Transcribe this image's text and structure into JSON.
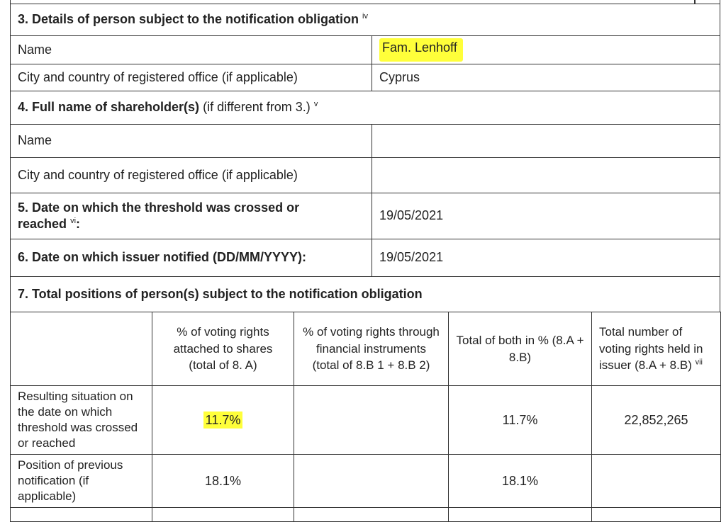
{
  "section3": {
    "title": "3. Details of person subject to the notification obligation",
    "note": "iv",
    "rows": [
      {
        "label": "Name",
        "value": "Fam. Lenhoff"
      },
      {
        "label": "City and country of registered office (if applicable)",
        "value": "Cyprus"
      }
    ]
  },
  "section4": {
    "title": "4. Full name of shareholder(s)",
    "suffix": "(if different from 3.)",
    "note": "v",
    "rows": [
      {
        "label": "Name"
      },
      {
        "label": "City and country of registered office (if applicable)"
      }
    ]
  },
  "section5": {
    "title": "5. Date on which the threshold was crossed or reached",
    "note": "vi",
    "punct": ":",
    "value": "19/05/2021"
  },
  "section6": {
    "title": "6. Date on which issuer notified (DD/MM/YYYY):",
    "value": "19/05/2021"
  },
  "section7": {
    "title": "7. Total positions of person(s) subject to the notification obligation",
    "headers": [
      null,
      "% of voting rights attached to shares (total of 8. A)",
      "% of voting rights through financial instruments (total of 8.B 1 + 8.B 2)",
      "Total of both in % (8.A + 8.B)",
      "Total number of voting rights held in issuer (8.A + 8.B)"
    ],
    "header_note": "vii",
    "rows": [
      [
        "Resulting situation on the date on which threshold was crossed or reached",
        "11.7%",
        null,
        "11.7%",
        "22,852,265"
      ],
      [
        "Position of previous notification (if applicable)",
        "18.1%",
        null,
        "18.1%",
        null
      ]
    ]
  }
}
